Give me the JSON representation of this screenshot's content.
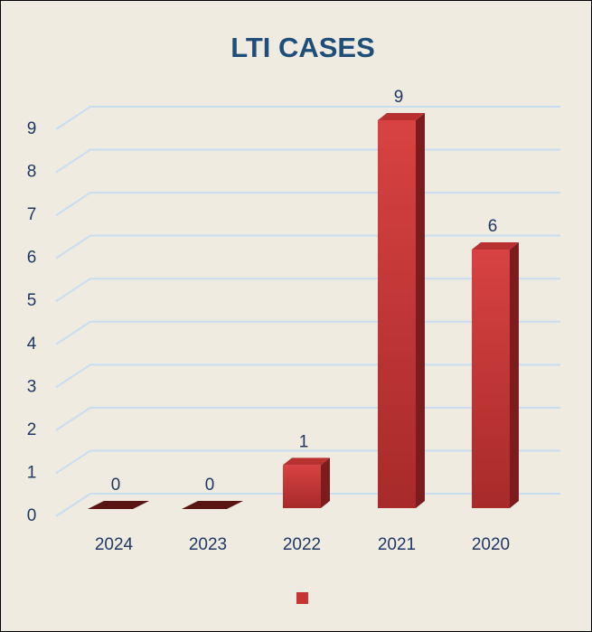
{
  "chart_data": {
    "type": "bar3d",
    "title": "LTI CASES",
    "categories": [
      "2024",
      "2023",
      "2022",
      "2021",
      "2020"
    ],
    "values": [
      0,
      0,
      1,
      9,
      6
    ],
    "color": "#c83434",
    "ylim": [
      0,
      9
    ],
    "yticks": [
      0,
      1,
      2,
      3,
      4,
      5,
      6,
      7,
      8,
      9
    ],
    "grid": true
  }
}
